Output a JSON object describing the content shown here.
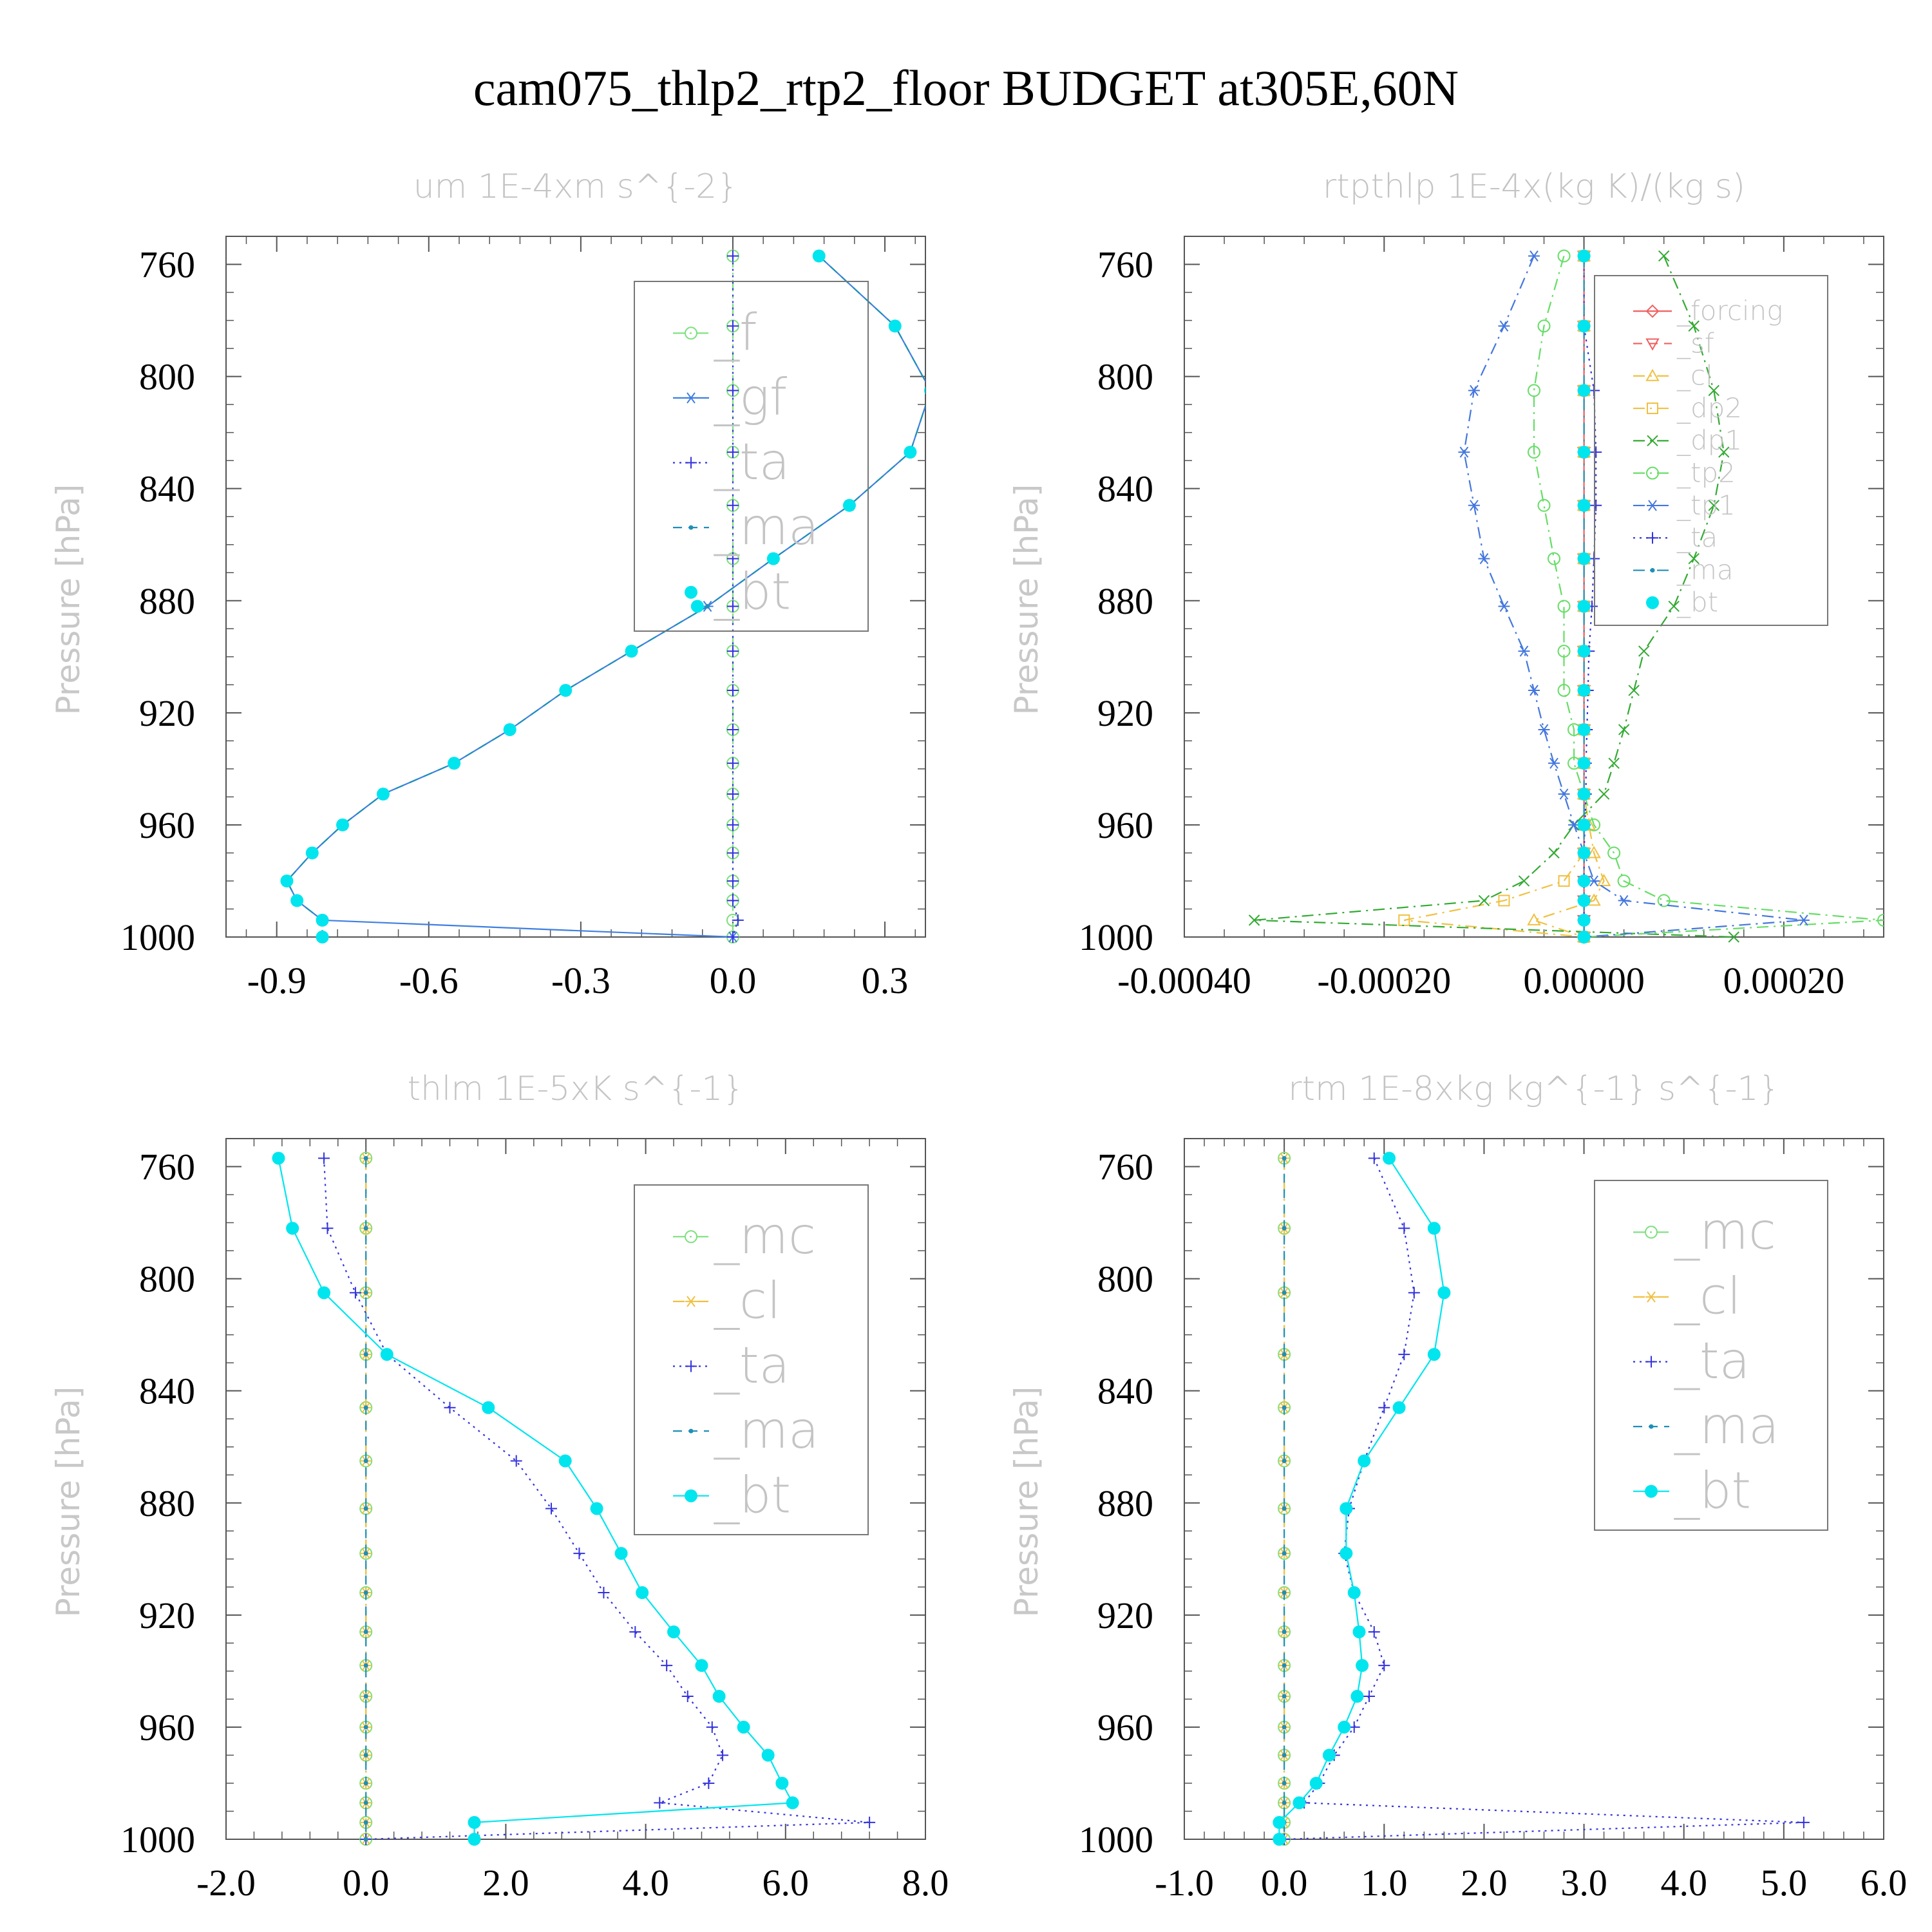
{
  "title": "cam075_thlp2_rtp2_floor  BUDGET at305E,60N",
  "colors": {
    "f": "#7ddf7d",
    "gf": "#3f7fe0",
    "ta": "#3333dd",
    "ma": "#1f8fb8",
    "bt": "#00e5ee",
    "forcing": "#f06060",
    "sf": "#f06060",
    "cl": "#f0c040",
    "dp2": "#f0c040",
    "dp1": "#33aa33",
    "tp2": "#66dd66",
    "tp1": "#4477dd",
    "mc": "#7ddf7d"
  },
  "chart_data": [
    {
      "type": "line",
      "title": "um  1E-4xm s^{-2}",
      "ylabel": "Pressure [hPa]",
      "xlim": [
        -1.0,
        0.38
      ],
      "ylim": [
        750,
        1000
      ],
      "xticks": [
        -0.9,
        -0.6,
        -0.3,
        0.0,
        0.3
      ],
      "xtick_labels": [
        "-0.9",
        "-0.6",
        "-0.3",
        "0.0",
        "0.3"
      ],
      "yticks": [
        760,
        800,
        840,
        880,
        920,
        960,
        1000
      ],
      "ytick_labels": [
        "760",
        "800",
        "840",
        "880",
        "920",
        "960",
        "1000"
      ],
      "levels": [
        757,
        782,
        805,
        827,
        846,
        865,
        882,
        898,
        912,
        926,
        938,
        949,
        960,
        970,
        980,
        987,
        994,
        1000
      ],
      "legend": [
        "_f",
        "_gf",
        "_ta",
        "_ma",
        "_bt"
      ],
      "legend_box": "right-top",
      "series": [
        {
          "name": "_f",
          "key": "f",
          "dash": "dashdot",
          "marker": "circle",
          "values": [
            0,
            0,
            0,
            0,
            0,
            0,
            0,
            0,
            0,
            0,
            0,
            0,
            0,
            0,
            0,
            0,
            0,
            0
          ]
        },
        {
          "name": "_gf",
          "key": "gf",
          "dash": "solid",
          "marker": "star",
          "values": [
            0.17,
            0.32,
            0.39,
            0.35,
            0.23,
            0.08,
            -0.05,
            -0.2,
            -0.33,
            -0.44,
            -0.55,
            -0.69,
            -0.77,
            -0.83,
            -0.88,
            -0.86,
            -0.81,
            0
          ]
        },
        {
          "name": "_ta",
          "key": "ta",
          "dash": "dotted",
          "marker": "plus",
          "values": [
            0,
            0,
            0,
            0,
            0,
            0,
            0,
            0,
            0,
            0,
            0,
            0,
            0,
            0,
            0,
            0,
            0.01,
            0
          ]
        },
        {
          "name": "_ma",
          "key": "ma",
          "dash": "dashed",
          "marker": "dot",
          "values": [
            0.17,
            0.32,
            0.39,
            0.35,
            0.23,
            0.08,
            -0.05,
            -0.2,
            -0.33,
            -0.44,
            -0.55,
            -0.69,
            -0.77,
            -0.83,
            -0.88,
            -0.86,
            -0.81,
            -0.81
          ]
        },
        {
          "name": "_bt",
          "key": "bt",
          "dash": "none",
          "marker": "bigdot",
          "values": [
            0.17,
            0.32,
            0.39,
            0.35,
            0.23,
            0.08,
            -0.07,
            -0.2,
            -0.33,
            -0.44,
            -0.55,
            -0.69,
            -0.77,
            -0.83,
            -0.88,
            -0.86,
            -0.81,
            -0.81
          ]
        }
      ]
    },
    {
      "type": "line",
      "title": "rtpthlp  1E-4x(kg K)/(kg s)",
      "ylabel": "Pressure [hPa]",
      "xlim": [
        -0.0004,
        0.0003
      ],
      "ylim": [
        750,
        1000
      ],
      "xticks": [
        -0.0004,
        -0.0002,
        0.0,
        0.0002
      ],
      "xtick_labels": [
        "-0.00040",
        "-0.00020",
        "0.00000",
        "0.00020"
      ],
      "yticks": [
        760,
        800,
        840,
        880,
        920,
        960,
        1000
      ],
      "ytick_labels": [
        "760",
        "800",
        "840",
        "880",
        "920",
        "960",
        "1000"
      ],
      "levels": [
        757,
        782,
        805,
        827,
        846,
        865,
        882,
        898,
        912,
        926,
        938,
        949,
        960,
        970,
        980,
        987,
        994,
        1000
      ],
      "legend": [
        "_forcing",
        "_sf",
        "_cl",
        "_dp2",
        "_dp1",
        "_tp2",
        "_tp1",
        "_ta",
        "_ma",
        "_bt"
      ],
      "legend_box": "right-top",
      "series": [
        {
          "name": "_forcing",
          "key": "forcing",
          "dash": "solid",
          "marker": "diamond",
          "values": [
            0,
            0,
            0,
            0,
            0,
            0,
            0,
            0,
            0,
            0,
            0,
            0,
            0,
            0,
            0,
            0,
            0,
            0
          ]
        },
        {
          "name": "_sf",
          "key": "sf",
          "dash": "dashed",
          "marker": "tridown",
          "values": [
            0,
            0,
            0,
            0,
            0,
            0,
            0,
            0,
            0,
            0,
            0,
            0,
            0,
            0,
            0,
            0,
            0,
            0
          ]
        },
        {
          "name": "_cl",
          "key": "cl",
          "dash": "dashdot",
          "marker": "triup",
          "values": [
            0,
            0,
            0,
            0,
            0,
            0,
            0,
            0,
            0,
            0,
            0,
            0,
            5e-06,
            1e-05,
            2e-05,
            1e-05,
            -5e-05,
            0
          ]
        },
        {
          "name": "_dp2",
          "key": "dp2",
          "dash": "dashdot",
          "marker": "square",
          "values": [
            0,
            0,
            0,
            0,
            0,
            0,
            0,
            0,
            0,
            0,
            0,
            0,
            0,
            0,
            -2e-05,
            -8e-05,
            -0.00018,
            0
          ]
        },
        {
          "name": "_dp1",
          "key": "dp1",
          "dash": "dashdot",
          "marker": "cross",
          "values": [
            8e-05,
            0.00011,
            0.00013,
            0.00014,
            0.00013,
            0.00011,
            9e-05,
            6e-05,
            5e-05,
            4e-05,
            3e-05,
            2e-05,
            -1e-05,
            -3e-05,
            -6e-05,
            -0.0001,
            -0.00033,
            0.00015
          ]
        },
        {
          "name": "_tp2",
          "key": "tp2",
          "dash": "dashdot",
          "marker": "circle",
          "values": [
            -2e-05,
            -4e-05,
            -5e-05,
            -5e-05,
            -4e-05,
            -3e-05,
            -2e-05,
            -2e-05,
            -2e-05,
            -1e-05,
            -1e-05,
            0,
            1e-05,
            3e-05,
            4e-05,
            8e-05,
            0.0003,
            0
          ]
        },
        {
          "name": "_tp1",
          "key": "tp1",
          "dash": "dashdot",
          "marker": "star",
          "values": [
            -5e-05,
            -8e-05,
            -0.00011,
            -0.00012,
            -0.00011,
            -0.0001,
            -8e-05,
            -6e-05,
            -5e-05,
            -4e-05,
            -3e-05,
            -2e-05,
            -1e-05,
            0,
            1e-05,
            4e-05,
            0.00022,
            0
          ]
        },
        {
          "name": "_ta",
          "key": "ta",
          "dash": "dotted",
          "marker": "plus",
          "values": [
            0,
            0,
            1e-05,
            1.2e-05,
            1.2e-05,
            1e-05,
            8e-06,
            5e-06,
            4e-06,
            3e-06,
            2e-06,
            2e-06,
            1e-06,
            0,
            0,
            0,
            0,
            0
          ]
        },
        {
          "name": "_ma",
          "key": "ma",
          "dash": "dashdot",
          "marker": "dot",
          "values": [
            0,
            0,
            0,
            0,
            0,
            0,
            0,
            0,
            0,
            0,
            0,
            0,
            0,
            0,
            0,
            0,
            0,
            0
          ]
        },
        {
          "name": "_bt",
          "key": "bt",
          "dash": "none",
          "marker": "bigdot",
          "values": [
            0,
            0,
            0,
            0,
            0,
            0,
            0,
            0,
            0,
            0,
            0,
            0,
            0,
            0,
            0,
            0,
            0,
            0
          ]
        }
      ]
    },
    {
      "type": "line",
      "title": "thlm  1E-5xK s^{-1}",
      "ylabel": "Pressure [hPa]",
      "xlim": [
        -2.0,
        8.0
      ],
      "ylim": [
        750,
        1000
      ],
      "xticks": [
        -2.0,
        0.0,
        2.0,
        4.0,
        6.0,
        8.0
      ],
      "xtick_labels": [
        "-2.0",
        "0.0",
        "2.0",
        "4.0",
        "6.0",
        "8.0"
      ],
      "yticks": [
        760,
        800,
        840,
        880,
        920,
        960,
        1000
      ],
      "ytick_labels": [
        "760",
        "800",
        "840",
        "880",
        "920",
        "960",
        "1000"
      ],
      "levels": [
        757,
        782,
        805,
        827,
        846,
        865,
        882,
        898,
        912,
        926,
        938,
        949,
        960,
        970,
        980,
        987,
        994,
        1000
      ],
      "legend": [
        "_mc",
        "_cl",
        "_ta",
        "_ma",
        "_bt"
      ],
      "legend_box": "right-top",
      "series": [
        {
          "name": "_mc",
          "key": "mc",
          "dash": "dashdot",
          "marker": "circle",
          "values": [
            0,
            0,
            0,
            0,
            0,
            0,
            0,
            0,
            0,
            0,
            0,
            0,
            0,
            0,
            0,
            0,
            0,
            0
          ]
        },
        {
          "name": "_cl",
          "key": "cl",
          "dash": "dashdot",
          "marker": "star",
          "values": [
            0,
            0,
            0,
            0,
            0,
            0,
            0,
            0,
            0,
            0,
            0,
            0,
            0,
            0,
            0,
            0,
            0,
            0
          ]
        },
        {
          "name": "_ta",
          "key": "ta",
          "dash": "dotted",
          "marker": "plus",
          "values": [
            -0.6,
            -0.55,
            -0.15,
            0.3,
            1.2,
            2.15,
            2.65,
            3.05,
            3.4,
            3.85,
            4.3,
            4.6,
            4.95,
            5.1,
            4.9,
            4.2,
            7.2,
            0
          ]
        },
        {
          "name": "_ma",
          "key": "ma",
          "dash": "dashed",
          "marker": "dot",
          "values": [
            0,
            0,
            0,
            0,
            0,
            0,
            0,
            0,
            0,
            0,
            0,
            0,
            0,
            0,
            0,
            0,
            0,
            0
          ]
        },
        {
          "name": "_bt",
          "key": "bt",
          "dash": "solid",
          "marker": "bigdot",
          "values": [
            -1.25,
            -1.05,
            -0.6,
            0.3,
            1.75,
            2.85,
            3.3,
            3.65,
            3.95,
            4.4,
            4.8,
            5.05,
            5.4,
            5.75,
            5.95,
            6.1,
            1.55,
            1.55
          ]
        }
      ]
    },
    {
      "type": "line",
      "title": "rtm  1E-8xkg kg^{-1} s^{-1}",
      "ylabel": "Pressure [hPa]",
      "xlim": [
        -1.0,
        6.0
      ],
      "ylim": [
        750,
        1000
      ],
      "xticks": [
        -1.0,
        0.0,
        1.0,
        2.0,
        3.0,
        4.0,
        5.0,
        6.0
      ],
      "xtick_labels": [
        "-1.0",
        "0.0",
        "1.0",
        "2.0",
        "3.0",
        "4.0",
        "5.0",
        "6.0"
      ],
      "yticks": [
        760,
        800,
        840,
        880,
        920,
        960,
        1000
      ],
      "ytick_labels": [
        "760",
        "800",
        "840",
        "880",
        "920",
        "960",
        "1000"
      ],
      "levels": [
        757,
        782,
        805,
        827,
        846,
        865,
        882,
        898,
        912,
        926,
        938,
        949,
        960,
        970,
        980,
        987,
        994,
        1000
      ],
      "legend": [
        "_mc",
        "_cl",
        "_ta",
        "_ma",
        "_bt"
      ],
      "legend_box": "right-top",
      "series": [
        {
          "name": "_mc",
          "key": "mc",
          "dash": "dashdot",
          "marker": "circle",
          "values": [
            0,
            0,
            0,
            0,
            0,
            0,
            0,
            0,
            0,
            0,
            0,
            0,
            0,
            0,
            0,
            0,
            0,
            0
          ]
        },
        {
          "name": "_cl",
          "key": "cl",
          "dash": "dashdot",
          "marker": "star",
          "values": [
            0,
            0,
            0,
            0,
            0,
            0,
            0,
            0,
            0,
            0,
            0,
            0,
            0,
            0,
            0,
            0,
            0,
            0
          ]
        },
        {
          "name": "_ta",
          "key": "ta",
          "dash": "dotted",
          "marker": "plus",
          "values": [
            0.9,
            1.2,
            1.3,
            1.2,
            1.0,
            0.8,
            0.65,
            0.6,
            0.7,
            0.9,
            1.0,
            0.85,
            0.7,
            0.5,
            0.35,
            0.2,
            5.2,
            0
          ]
        },
        {
          "name": "_ma",
          "key": "ma",
          "dash": "dashed",
          "marker": "dot",
          "values": [
            0,
            0,
            0,
            0,
            0,
            0,
            0,
            0,
            0,
            0,
            0,
            0,
            0,
            0,
            0,
            0,
            0,
            0
          ]
        },
        {
          "name": "_bt",
          "key": "bt",
          "dash": "solid",
          "marker": "bigdot",
          "values": [
            1.05,
            1.5,
            1.6,
            1.5,
            1.15,
            0.8,
            0.62,
            0.62,
            0.7,
            0.75,
            0.78,
            0.73,
            0.6,
            0.45,
            0.32,
            0.15,
            -0.05,
            -0.05
          ]
        }
      ]
    }
  ]
}
